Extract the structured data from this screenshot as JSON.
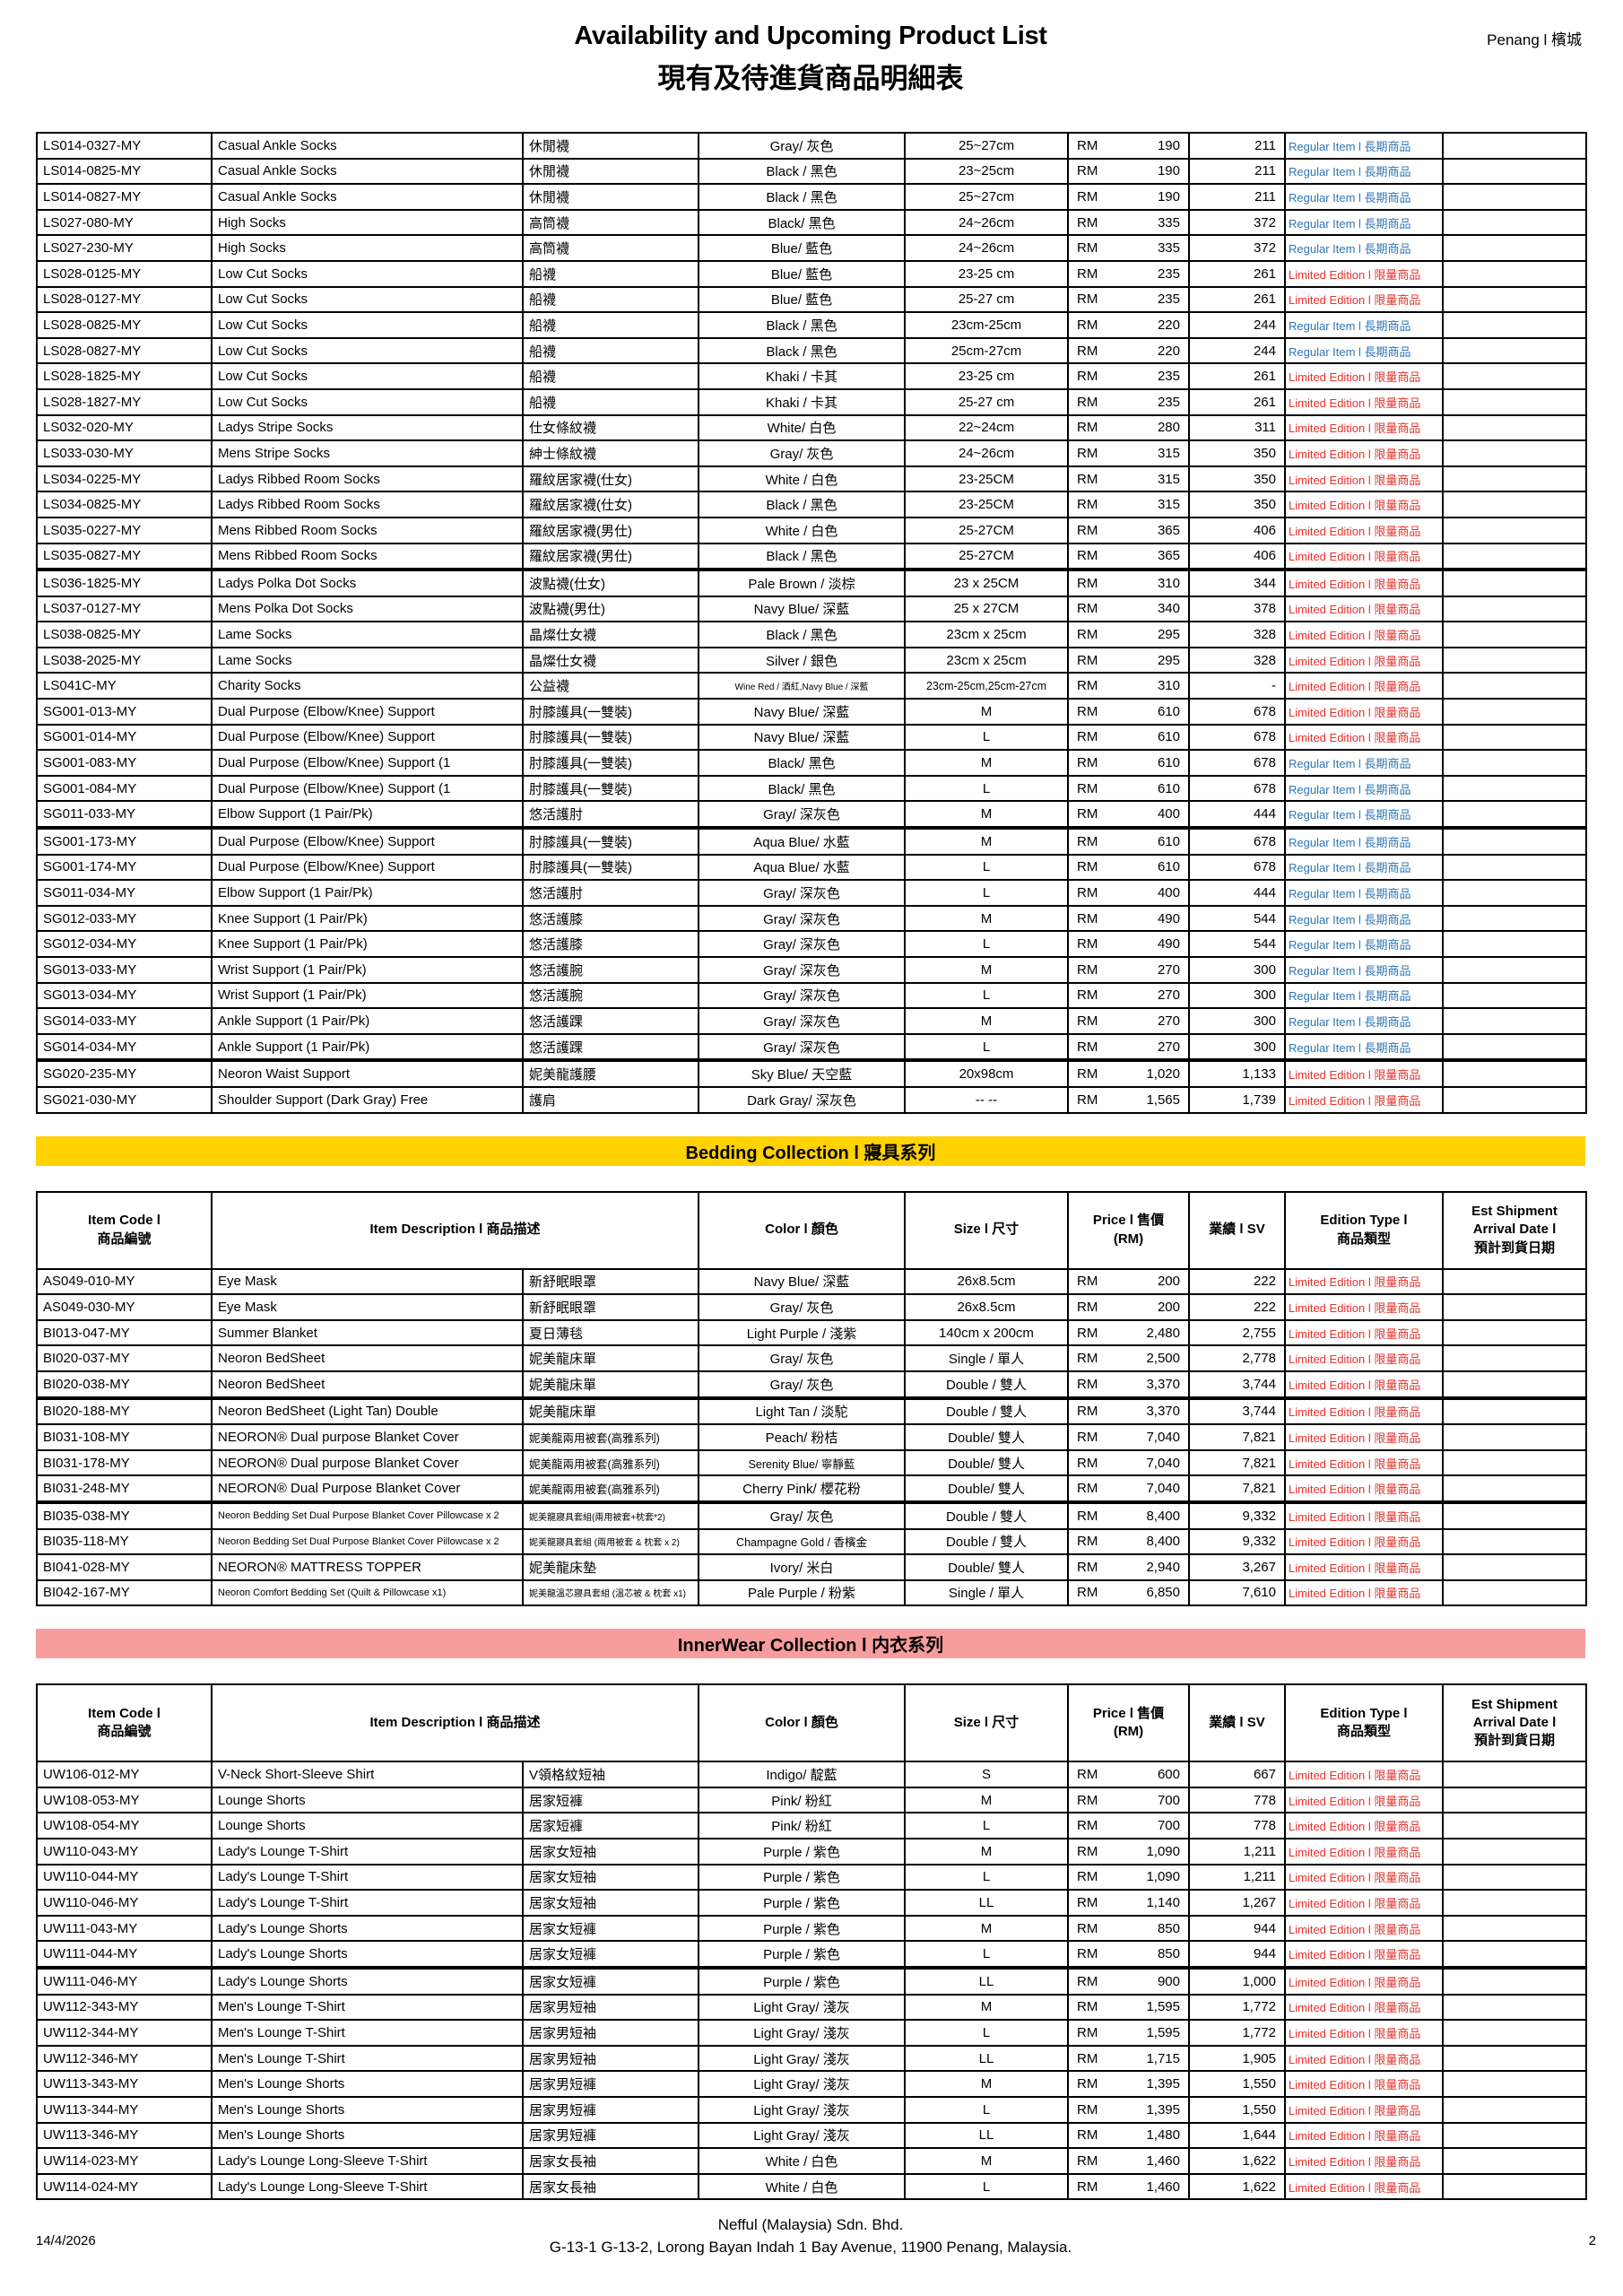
{
  "page": {
    "title": "Availability and Upcoming Product List",
    "subtitle": "現有及待進貨商品明細表",
    "location": "Penang l 檳城",
    "footer_company": "Nefful (Malaysia) Sdn. Bhd.",
    "footer_address": "G-13-1 G-13-2, Lorong Bayan Indah 1 Bay Avenue, 11900 Penang, Malaysia.",
    "date": "14/4/2026",
    "page_number": "2"
  },
  "labels": {
    "currency": "RM"
  },
  "colors": {
    "edition_regular": "#2e75b6",
    "edition_limited": "#e8312b",
    "bedding_banner": "#ffd200",
    "innerwear_banner": "#f89d9d"
  },
  "edition_labels": {
    "R": "Regular Item l 長期商品",
    "L": "Limited Edition l 限量商品"
  },
  "table_header": {
    "code": "Item Code l\n商品編號",
    "desc": "Item Description l 商品描述",
    "color": "Color l 顏色",
    "size": "Size l 尺寸",
    "price": "Price l 售價\n(RM)",
    "sv": "業績 l SV",
    "edition": "Edition Type l\n商品類型",
    "est": "Est Shipment\nArrival Date l\n預計到貨日期"
  },
  "sections": [
    {
      "id": "socks-supports",
      "banner": null,
      "show_header": false,
      "rows": [
        {
          "code": "LS014-0327-MY",
          "en": "Casual Ankle Socks",
          "zh": "休閒襪",
          "color": "Gray/ 灰色",
          "size": "25~27cm",
          "price": "190",
          "sv": "211",
          "ed": "R"
        },
        {
          "code": "LS014-0825-MY",
          "en": "Casual Ankle Socks",
          "zh": "休閒襪",
          "color": "Black / 黑色",
          "size": "23~25cm",
          "price": "190",
          "sv": "211",
          "ed": "R"
        },
        {
          "code": "LS014-0827-MY",
          "en": "Casual Ankle Socks",
          "zh": "休閒襪",
          "color": "Black / 黑色",
          "size": "25~27cm",
          "price": "190",
          "sv": "211",
          "ed": "R"
        },
        {
          "code": "LS027-080-MY",
          "en": "High Socks",
          "zh": "高筒襪",
          "color": "Black/ 黑色",
          "size": "24~26cm",
          "price": "335",
          "sv": "372",
          "ed": "R"
        },
        {
          "code": "LS027-230-MY",
          "en": "High Socks",
          "zh": "高筒襪",
          "color": "Blue/ 藍色",
          "size": "24~26cm",
          "price": "335",
          "sv": "372",
          "ed": "R"
        },
        {
          "code": "LS028-0125-MY",
          "en": "Low Cut Socks",
          "zh": "船襪",
          "color": "Blue/ 藍色",
          "size": "23-25 cm",
          "price": "235",
          "sv": "261",
          "ed": "L"
        },
        {
          "code": "LS028-0127-MY",
          "en": "Low Cut Socks",
          "zh": "船襪",
          "color": "Blue/ 藍色",
          "size": "25-27 cm",
          "price": "235",
          "sv": "261",
          "ed": "L"
        },
        {
          "code": "LS028-0825-MY",
          "en": "Low Cut Socks",
          "zh": "船襪",
          "color": "Black / 黑色",
          "size": "23cm-25cm",
          "price": "220",
          "sv": "244",
          "ed": "R"
        },
        {
          "code": "LS028-0827-MY",
          "en": "Low Cut Socks",
          "zh": "船襪",
          "color": "Black / 黑色",
          "size": "25cm-27cm",
          "price": "220",
          "sv": "244",
          "ed": "R"
        },
        {
          "code": "LS028-1825-MY",
          "en": "Low Cut Socks",
          "zh": "船襪",
          "color": "Khaki / 卡其",
          "size": "23-25 cm",
          "price": "235",
          "sv": "261",
          "ed": "L"
        },
        {
          "code": "LS028-1827-MY",
          "en": "Low Cut Socks",
          "zh": "船襪",
          "color": "Khaki / 卡其",
          "size": "25-27 cm",
          "price": "235",
          "sv": "261",
          "ed": "L"
        },
        {
          "code": "LS032-020-MY",
          "en": "Ladys Stripe Socks",
          "zh": "仕女條紋襪",
          "color": "White/ 白色",
          "size": "22~24cm",
          "price": "280",
          "sv": "311",
          "ed": "L"
        },
        {
          "code": "LS033-030-MY",
          "en": "Mens Stripe Socks",
          "zh": "紳士條紋襪",
          "color": "Gray/ 灰色",
          "size": "24~26cm",
          "price": "315",
          "sv": "350",
          "ed": "L"
        },
        {
          "code": "LS034-0225-MY",
          "en": "Ladys Ribbed Room Socks",
          "zh": "羅紋居家襪(仕女)",
          "color": "White / 白色",
          "size": "23-25CM",
          "price": "315",
          "sv": "350",
          "ed": "L"
        },
        {
          "code": "LS034-0825-MY",
          "en": "Ladys Ribbed Room Socks",
          "zh": "羅紋居家襪(仕女)",
          "color": "Black / 黑色",
          "size": "23-25CM",
          "price": "315",
          "sv": "350",
          "ed": "L"
        },
        {
          "code": "LS035-0227-MY",
          "en": "Mens Ribbed Room Socks",
          "zh": "羅紋居家襪(男仕)",
          "color": "White / 白色",
          "size": "25-27CM",
          "price": "365",
          "sv": "406",
          "ed": "L"
        },
        {
          "code": "LS035-0827-MY",
          "en": "Mens Ribbed Room Socks",
          "zh": "羅紋居家襪(男仕)",
          "color": "Black / 黑色",
          "size": "25-27CM",
          "price": "365",
          "sv": "406",
          "ed": "L"
        },
        {
          "code": "LS036-1825-MY",
          "en": "Ladys Polka Dot Socks",
          "zh": "波點襪(仕女)",
          "color": "Pale Brown / 淡棕",
          "size": "23 x 25CM",
          "price": "310",
          "sv": "344",
          "ed": "L",
          "thick": true
        },
        {
          "code": "LS037-0127-MY",
          "en": "Mens Polka Dot Socks",
          "zh": "波點襪(男仕)",
          "color": "Navy Blue/ 深藍",
          "size": "25 x 27CM",
          "price": "340",
          "sv": "378",
          "ed": "L"
        },
        {
          "code": "LS038-0825-MY",
          "en": "Lame Socks",
          "zh": "晶燦仕女襪",
          "color": "Black / 黑色",
          "size": "23cm x 25cm",
          "price": "295",
          "sv": "328",
          "ed": "L"
        },
        {
          "code": "LS038-2025-MY",
          "en": "Lame Socks",
          "zh": "晶燦仕女襪",
          "color": "Silver / 銀色",
          "size": "23cm x 25cm",
          "price": "295",
          "sv": "328",
          "ed": "L"
        },
        {
          "code": "LS041C-MY",
          "en": "Charity Socks",
          "zh": "公益襪",
          "color": "Wine Red / 酒紅,Navy Blue / 深藍",
          "size": "23cm-25cm,25cm-27cm",
          "price": "310",
          "sv": "-",
          "ed": "L"
        },
        {
          "code": "SG001-013-MY",
          "en": "Dual Purpose (Elbow/Knee) Support",
          "zh": "肘膝護具(一雙裝)",
          "color": "Navy Blue/ 深藍",
          "size": "M",
          "price": "610",
          "sv": "678",
          "ed": "L"
        },
        {
          "code": "SG001-014-MY",
          "en": "Dual Purpose (Elbow/Knee) Support",
          "zh": "肘膝護具(一雙裝)",
          "color": "Navy Blue/ 深藍",
          "size": "L",
          "price": "610",
          "sv": "678",
          "ed": "L"
        },
        {
          "code": "SG001-083-MY",
          "en": "Dual Purpose (Elbow/Knee) Support (1",
          "zh": "肘膝護具(一雙裝)",
          "color": "Black/ 黑色",
          "size": "M",
          "price": "610",
          "sv": "678",
          "ed": "R"
        },
        {
          "code": "SG001-084-MY",
          "en": "Dual Purpose (Elbow/Knee) Support (1",
          "zh": "肘膝護具(一雙裝)",
          "color": "Black/ 黑色",
          "size": "L",
          "price": "610",
          "sv": "678",
          "ed": "R"
        },
        {
          "code": "SG011-033-MY",
          "en": "Elbow Support (1 Pair/Pk)",
          "zh": "悠活護肘",
          "color": "Gray/ 深灰色",
          "size": "M",
          "price": "400",
          "sv": "444",
          "ed": "R"
        },
        {
          "code": "SG001-173-MY",
          "en": "Dual Purpose (Elbow/Knee) Support",
          "zh": "肘膝護具(一雙裝)",
          "color": "Aqua Blue/ 水藍",
          "size": "M",
          "price": "610",
          "sv": "678",
          "ed": "R",
          "thick": true
        },
        {
          "code": "SG001-174-MY",
          "en": "Dual Purpose (Elbow/Knee) Support",
          "zh": "肘膝護具(一雙裝)",
          "color": "Aqua Blue/ 水藍",
          "size": "L",
          "price": "610",
          "sv": "678",
          "ed": "R"
        },
        {
          "code": "SG011-034-MY",
          "en": "Elbow Support (1 Pair/Pk)",
          "zh": "悠活護肘",
          "color": "Gray/ 深灰色",
          "size": "L",
          "price": "400",
          "sv": "444",
          "ed": "R"
        },
        {
          "code": "SG012-033-MY",
          "en": "Knee Support (1 Pair/Pk)",
          "zh": "悠活護膝",
          "color": "Gray/ 深灰色",
          "size": "M",
          "price": "490",
          "sv": "544",
          "ed": "R"
        },
        {
          "code": "SG012-034-MY",
          "en": "Knee Support (1 Pair/Pk)",
          "zh": "悠活護膝",
          "color": "Gray/ 深灰色",
          "size": "L",
          "price": "490",
          "sv": "544",
          "ed": "R"
        },
        {
          "code": "SG013-033-MY",
          "en": "Wrist Support (1 Pair/Pk)",
          "zh": "悠活護腕",
          "color": "Gray/ 深灰色",
          "size": "M",
          "price": "270",
          "sv": "300",
          "ed": "R"
        },
        {
          "code": "SG013-034-MY",
          "en": "Wrist Support (1 Pair/Pk)",
          "zh": "悠活護腕",
          "color": "Gray/ 深灰色",
          "size": "L",
          "price": "270",
          "sv": "300",
          "ed": "R"
        },
        {
          "code": "SG014-033-MY",
          "en": "Ankle Support (1 Pair/Pk)",
          "zh": "悠活護踝",
          "color": "Gray/ 深灰色",
          "size": "M",
          "price": "270",
          "sv": "300",
          "ed": "R"
        },
        {
          "code": "SG014-034-MY",
          "en": "Ankle Support (1 Pair/Pk)",
          "zh": "悠活護踝",
          "color": "Gray/ 深灰色",
          "size": "L",
          "price": "270",
          "sv": "300",
          "ed": "R"
        },
        {
          "code": "SG020-235-MY",
          "en": "Neoron Waist Support",
          "zh": "妮美龍護腰",
          "color": "Sky Blue/ 天空藍",
          "size": "20x98cm",
          "price": "1,020",
          "sv": "1,133",
          "ed": "L",
          "thick": true
        },
        {
          "code": "SG021-030-MY",
          "en": "Shoulder Support (Dark Gray) Free",
          "zh": "護肩",
          "color": "Dark Gray/ 深灰色",
          "size": "-- --",
          "price": "1,565",
          "sv": "1,739",
          "ed": "L"
        }
      ]
    },
    {
      "id": "bedding",
      "banner": {
        "label": "Bedding Collection l 寢具系列",
        "color_key": "bedding_banner"
      },
      "show_header": true,
      "rows": [
        {
          "code": "AS049-010-MY",
          "en": "Eye Mask",
          "zh": "新舒眠眼罩",
          "color": "Navy Blue/ 深藍",
          "size": "26x8.5cm",
          "price": "200",
          "sv": "222",
          "ed": "L"
        },
        {
          "code": "AS049-030-MY",
          "en": "Eye Mask",
          "zh": "新舒眠眼罩",
          "color": "Gray/ 灰色",
          "size": "26x8.5cm",
          "price": "200",
          "sv": "222",
          "ed": "L"
        },
        {
          "code": "BI013-047-MY",
          "en": "Summer Blanket",
          "zh": "夏日薄毯",
          "color": "Light Purple / 淺紫",
          "size": "140cm x 200cm",
          "price": "2,480",
          "sv": "2,755",
          "ed": "L"
        },
        {
          "code": "BI020-037-MY",
          "en": "Neoron BedSheet",
          "zh": "妮美龍床單",
          "color": "Gray/ 灰色",
          "size": "Single / 單人",
          "price": "2,500",
          "sv": "2,778",
          "ed": "L"
        },
        {
          "code": "BI020-038-MY",
          "en": "Neoron BedSheet",
          "zh": "妮美龍床單",
          "color": "Gray/ 灰色",
          "size": "Double / 雙人",
          "price": "3,370",
          "sv": "3,744",
          "ed": "L"
        },
        {
          "code": "BI020-188-MY",
          "en": "Neoron BedSheet (Light Tan) Double",
          "zh": "妮美龍床單",
          "color": "Light Tan / 淡駝",
          "size": "Double / 雙人",
          "price": "3,370",
          "sv": "3,744",
          "ed": "L",
          "thick": true
        },
        {
          "code": "BI031-108-MY",
          "en": "NEORON® Dual purpose Blanket Cover",
          "zh": "妮美龍兩用被套(高雅系列)",
          "color": "Peach/ 粉桔",
          "size": "Double/ 雙人",
          "price": "7,040",
          "sv": "7,821",
          "ed": "L"
        },
        {
          "code": "BI031-178-MY",
          "en": "NEORON® Dual purpose Blanket Cover",
          "zh": "妮美龍兩用被套(高雅系列)",
          "color": "Serenity Blue/ 寧靜藍",
          "size": "Double/ 雙人",
          "price": "7,040",
          "sv": "7,821",
          "ed": "L"
        },
        {
          "code": "BI031-248-MY",
          "en": "NEORON® Dual Purpose Blanket Cover",
          "zh": "妮美龍兩用被套(高雅系列)",
          "color": "Cherry Pink/ 櫻花粉",
          "size": "Double/ 雙人",
          "price": "7,040",
          "sv": "7,821",
          "ed": "L"
        },
        {
          "code": "BI035-038-MY",
          "en": "Neoron Bedding Set Dual Purpose Blanket Cover Pillowcase x 2",
          "zh": "妮美龍寢具套組(兩用被套+枕套*2)",
          "color": "Gray/ 灰色",
          "size": "Double / 雙人",
          "price": "8,400",
          "sv": "9,332",
          "ed": "L",
          "thick": true
        },
        {
          "code": "BI035-118-MY",
          "en": "Neoron Bedding Set Dual Purpose Blanket Cover Pillowcase x 2",
          "zh": "妮美龍寢具套組 (兩用被套 & 枕套 x 2)",
          "color": "Champagne Gold / 香檳金",
          "size": "Double / 雙人",
          "price": "8,400",
          "sv": "9,332",
          "ed": "L"
        },
        {
          "code": "BI041-028-MY",
          "en": "NEORON® MATTRESS TOPPER",
          "zh": "妮美龍床墊",
          "color": "Ivory/ 米白",
          "size": "Double/ 雙人",
          "price": "2,940",
          "sv": "3,267",
          "ed": "L"
        },
        {
          "code": "BI042-167-MY",
          "en": "Neoron Comfort Bedding Set (Quilt & Pillowcase x1)",
          "zh": "妮美龍溫芯寢具套組 (溫芯被 & 枕套 x1)",
          "color": "Pale Purple / 粉紫",
          "size": "Single / 單人",
          "price": "6,850",
          "sv": "7,610",
          "ed": "L"
        }
      ]
    },
    {
      "id": "innerwear",
      "banner": {
        "label": "InnerWear Collection l 内衣系列",
        "color_key": "innerwear_banner"
      },
      "show_header": true,
      "rows": [
        {
          "code": "UW106-012-MY",
          "en": "V-Neck Short-Sleeve Shirt",
          "zh": "V領格紋短袖",
          "color": "Indigo/ 靛藍",
          "size": "S",
          "price": "600",
          "sv": "667",
          "ed": "L"
        },
        {
          "code": "UW108-053-MY",
          "en": "Lounge Shorts",
          "zh": "居家短褲",
          "color": "Pink/ 粉紅",
          "size": "M",
          "price": "700",
          "sv": "778",
          "ed": "L"
        },
        {
          "code": "UW108-054-MY",
          "en": "Lounge Shorts",
          "zh": "居家短褲",
          "color": "Pink/ 粉紅",
          "size": "L",
          "price": "700",
          "sv": "778",
          "ed": "L"
        },
        {
          "code": "UW110-043-MY",
          "en": "Lady's Lounge T-Shirt",
          "zh": "居家女短袖",
          "color": "Purple / 紫色",
          "size": "M",
          "price": "1,090",
          "sv": "1,211",
          "ed": "L"
        },
        {
          "code": "UW110-044-MY",
          "en": "Lady's Lounge T-Shirt",
          "zh": "居家女短袖",
          "color": "Purple / 紫色",
          "size": "L",
          "price": "1,090",
          "sv": "1,211",
          "ed": "L"
        },
        {
          "code": "UW110-046-MY",
          "en": "Lady's Lounge T-Shirt",
          "zh": "居家女短袖",
          "color": "Purple / 紫色",
          "size": "LL",
          "price": "1,140",
          "sv": "1,267",
          "ed": "L"
        },
        {
          "code": "UW111-043-MY",
          "en": "Lady's Lounge Shorts",
          "zh": "居家女短褲",
          "color": "Purple / 紫色",
          "size": "M",
          "price": "850",
          "sv": "944",
          "ed": "L"
        },
        {
          "code": "UW111-044-MY",
          "en": "Lady's Lounge Shorts",
          "zh": "居家女短褲",
          "color": "Purple / 紫色",
          "size": "L",
          "price": "850",
          "sv": "944",
          "ed": "L"
        },
        {
          "code": "UW111-046-MY",
          "en": "Lady's Lounge Shorts",
          "zh": "居家女短褲",
          "color": "Purple / 紫色",
          "size": "LL",
          "price": "900",
          "sv": "1,000",
          "ed": "L",
          "thick": true
        },
        {
          "code": "UW112-343-MY",
          "en": "Men's Lounge T-Shirt",
          "zh": "居家男短袖",
          "color": "Light Gray/ 淺灰",
          "size": "M",
          "price": "1,595",
          "sv": "1,772",
          "ed": "L"
        },
        {
          "code": "UW112-344-MY",
          "en": "Men's Lounge T-Shirt",
          "zh": "居家男短袖",
          "color": "Light Gray/ 淺灰",
          "size": "L",
          "price": "1,595",
          "sv": "1,772",
          "ed": "L"
        },
        {
          "code": "UW112-346-MY",
          "en": "Men's Lounge T-Shirt",
          "zh": "居家男短袖",
          "color": "Light Gray/ 淺灰",
          "size": "LL",
          "price": "1,715",
          "sv": "1,905",
          "ed": "L"
        },
        {
          "code": "UW113-343-MY",
          "en": "Men's Lounge Shorts",
          "zh": "居家男短褲",
          "color": "Light Gray/ 淺灰",
          "size": "M",
          "price": "1,395",
          "sv": "1,550",
          "ed": "L"
        },
        {
          "code": "UW113-344-MY",
          "en": "Men's Lounge Shorts",
          "zh": "居家男短褲",
          "color": "Light Gray/ 淺灰",
          "size": "L",
          "price": "1,395",
          "sv": "1,550",
          "ed": "L"
        },
        {
          "code": "UW113-346-MY",
          "en": "Men's Lounge Shorts",
          "zh": "居家男短褲",
          "color": "Light Gray/ 淺灰",
          "size": "LL",
          "price": "1,480",
          "sv": "1,644",
          "ed": "L"
        },
        {
          "code": "UW114-023-MY",
          "en": "Lady's Lounge Long-Sleeve T-Shirt",
          "zh": "居家女長袖",
          "color": "White / 白色",
          "size": "M",
          "price": "1,460",
          "sv": "1,622",
          "ed": "L"
        },
        {
          "code": "UW114-024-MY",
          "en": "Lady's Lounge Long-Sleeve T-Shirt",
          "zh": "居家女長袖",
          "color": "White / 白色",
          "size": "L",
          "price": "1,460",
          "sv": "1,622",
          "ed": "L"
        }
      ]
    }
  ]
}
